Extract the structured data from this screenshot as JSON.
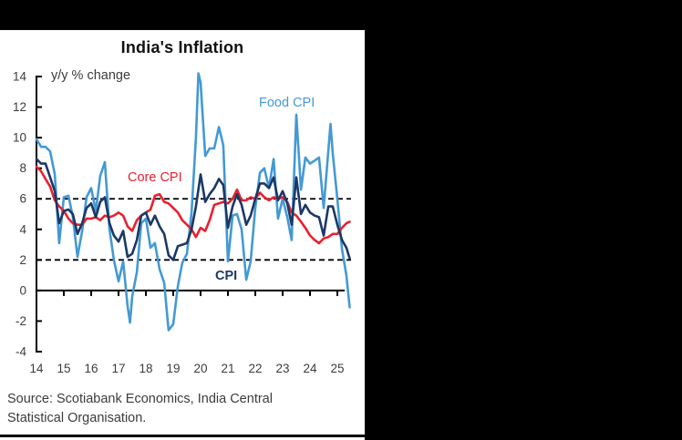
{
  "colors": {
    "background": "#000000",
    "panel": "#ffffff",
    "axis": "#000000",
    "text_muted": "#3c3c3c",
    "title": "#111111"
  },
  "source": {
    "line1": "Source: Scotiabank Economics, India Central",
    "line2": "Statistical Organisation."
  },
  "chart_data": {
    "type": "line",
    "title": "India's Inflation",
    "y_axis_note": "y/y % change",
    "xlabel": "",
    "ylabel": "",
    "xlim": [
      2014,
      2025.5
    ],
    "ylim": [
      -4,
      14
    ],
    "grid": false,
    "legend_position": "inline-labels",
    "reference_lines_dashed": [
      2,
      6
    ],
    "x_ticks": [
      {
        "t": 2014,
        "label": "14"
      },
      {
        "t": 2015,
        "label": "15"
      },
      {
        "t": 2016,
        "label": "16"
      },
      {
        "t": 2017,
        "label": "17"
      },
      {
        "t": 2018,
        "label": "18"
      },
      {
        "t": 2019,
        "label": "19"
      },
      {
        "t": 2020,
        "label": "20"
      },
      {
        "t": 2021,
        "label": "21"
      },
      {
        "t": 2022,
        "label": "22"
      },
      {
        "t": 2023,
        "label": "23"
      },
      {
        "t": 2024,
        "label": "24"
      },
      {
        "t": 2025,
        "label": "25"
      }
    ],
    "y_ticks": [
      {
        "v": 14,
        "label": "14"
      },
      {
        "v": 12,
        "label": "12"
      },
      {
        "v": 10,
        "label": "10"
      },
      {
        "v": 8,
        "label": "8"
      },
      {
        "v": 6,
        "label": "6"
      },
      {
        "v": 4,
        "label": "4"
      },
      {
        "v": 2,
        "label": "2"
      },
      {
        "v": 0,
        "label": "0"
      },
      {
        "v": -2,
        "label": "-2"
      },
      {
        "v": -4,
        "label": "-4"
      }
    ],
    "series": [
      {
        "name": "Food CPI",
        "color": "#4499d3",
        "points": [
          [
            2014.0,
            9.9
          ],
          [
            2014.17,
            9.4
          ],
          [
            2014.33,
            9.4
          ],
          [
            2014.5,
            9.1
          ],
          [
            2014.67,
            7.6
          ],
          [
            2014.83,
            3.1
          ],
          [
            2015.0,
            6.1
          ],
          [
            2015.17,
            6.2
          ],
          [
            2015.33,
            4.8
          ],
          [
            2015.5,
            2.2
          ],
          [
            2015.67,
            3.9
          ],
          [
            2015.83,
            6.1
          ],
          [
            2016.0,
            6.7
          ],
          [
            2016.17,
            5.2
          ],
          [
            2016.33,
            7.5
          ],
          [
            2016.5,
            8.4
          ],
          [
            2016.67,
            4.0
          ],
          [
            2016.83,
            2.0
          ],
          [
            2017.0,
            0.6
          ],
          [
            2017.17,
            1.9
          ],
          [
            2017.33,
            -1.0
          ],
          [
            2017.42,
            -2.1
          ],
          [
            2017.5,
            -0.4
          ],
          [
            2017.67,
            1.2
          ],
          [
            2017.83,
            4.4
          ],
          [
            2018.0,
            4.7
          ],
          [
            2018.17,
            2.8
          ],
          [
            2018.33,
            3.1
          ],
          [
            2018.5,
            1.4
          ],
          [
            2018.67,
            0.5
          ],
          [
            2018.83,
            -2.6
          ],
          [
            2019.0,
            -2.2
          ],
          [
            2019.17,
            0.3
          ],
          [
            2019.33,
            1.8
          ],
          [
            2019.5,
            2.4
          ],
          [
            2019.67,
            5.1
          ],
          [
            2019.83,
            10.0
          ],
          [
            2019.92,
            14.2
          ],
          [
            2020.0,
            13.6
          ],
          [
            2020.17,
            8.8
          ],
          [
            2020.33,
            9.3
          ],
          [
            2020.5,
            9.3
          ],
          [
            2020.67,
            10.7
          ],
          [
            2020.83,
            9.5
          ],
          [
            2021.0,
            1.9
          ],
          [
            2021.17,
            4.9
          ],
          [
            2021.33,
            5.0
          ],
          [
            2021.5,
            4.0
          ],
          [
            2021.67,
            0.7
          ],
          [
            2021.83,
            1.9
          ],
          [
            2022.0,
            5.4
          ],
          [
            2022.17,
            7.7
          ],
          [
            2022.33,
            8.0
          ],
          [
            2022.5,
            6.7
          ],
          [
            2022.67,
            8.6
          ],
          [
            2022.83,
            4.7
          ],
          [
            2023.0,
            6.0
          ],
          [
            2023.17,
            4.8
          ],
          [
            2023.33,
            3.3
          ],
          [
            2023.5,
            11.5
          ],
          [
            2023.67,
            6.6
          ],
          [
            2023.83,
            8.7
          ],
          [
            2024.0,
            8.3
          ],
          [
            2024.17,
            8.5
          ],
          [
            2024.33,
            8.7
          ],
          [
            2024.5,
            5.4
          ],
          [
            2024.75,
            10.9
          ],
          [
            2024.83,
            9.0
          ],
          [
            2025.0,
            6.0
          ],
          [
            2025.17,
            2.7
          ],
          [
            2025.33,
            1.0
          ],
          [
            2025.45,
            -1.1
          ]
        ]
      },
      {
        "name": "Core CPI",
        "color": "#e8212e",
        "points": [
          [
            2014.0,
            8.1
          ],
          [
            2014.17,
            7.8
          ],
          [
            2014.33,
            7.3
          ],
          [
            2014.5,
            6.8
          ],
          [
            2014.67,
            5.9
          ],
          [
            2014.83,
            5.5
          ],
          [
            2015.0,
            5.2
          ],
          [
            2015.17,
            4.7
          ],
          [
            2015.33,
            4.4
          ],
          [
            2015.5,
            4.3
          ],
          [
            2015.67,
            4.3
          ],
          [
            2015.83,
            4.7
          ],
          [
            2016.0,
            4.7
          ],
          [
            2016.17,
            4.8
          ],
          [
            2016.33,
            4.6
          ],
          [
            2016.5,
            4.9
          ],
          [
            2016.67,
            4.8
          ],
          [
            2016.83,
            4.9
          ],
          [
            2017.0,
            5.1
          ],
          [
            2017.17,
            4.9
          ],
          [
            2017.33,
            4.2
          ],
          [
            2017.5,
            3.9
          ],
          [
            2017.67,
            4.6
          ],
          [
            2017.83,
            4.9
          ],
          [
            2018.0,
            5.1
          ],
          [
            2018.17,
            5.3
          ],
          [
            2018.33,
            6.2
          ],
          [
            2018.5,
            6.3
          ],
          [
            2018.67,
            5.8
          ],
          [
            2018.83,
            5.7
          ],
          [
            2019.0,
            5.4
          ],
          [
            2019.17,
            5.1
          ],
          [
            2019.33,
            4.6
          ],
          [
            2019.5,
            4.3
          ],
          [
            2019.67,
            4.0
          ],
          [
            2019.83,
            3.5
          ],
          [
            2020.0,
            4.1
          ],
          [
            2020.17,
            3.9
          ],
          [
            2020.33,
            4.6
          ],
          [
            2020.5,
            5.6
          ],
          [
            2020.67,
            5.7
          ],
          [
            2020.83,
            5.8
          ],
          [
            2021.0,
            5.7
          ],
          [
            2021.17,
            6.0
          ],
          [
            2021.33,
            6.6
          ],
          [
            2021.5,
            5.9
          ],
          [
            2021.67,
            5.9
          ],
          [
            2021.83,
            6.1
          ],
          [
            2022.0,
            6.0
          ],
          [
            2022.17,
            6.4
          ],
          [
            2022.33,
            6.1
          ],
          [
            2022.5,
            5.9
          ],
          [
            2022.67,
            6.1
          ],
          [
            2022.83,
            6.0
          ],
          [
            2023.0,
            6.1
          ],
          [
            2023.17,
            5.8
          ],
          [
            2023.33,
            5.1
          ],
          [
            2023.5,
            4.9
          ],
          [
            2023.67,
            4.5
          ],
          [
            2023.83,
            4.1
          ],
          [
            2024.0,
            3.6
          ],
          [
            2024.17,
            3.3
          ],
          [
            2024.33,
            3.1
          ],
          [
            2024.5,
            3.4
          ],
          [
            2024.67,
            3.5
          ],
          [
            2024.83,
            3.7
          ],
          [
            2025.0,
            3.7
          ],
          [
            2025.17,
            4.1
          ],
          [
            2025.33,
            4.4
          ],
          [
            2025.45,
            4.5
          ]
        ]
      },
      {
        "name": "CPI",
        "color": "#1b3866",
        "points": [
          [
            2014.0,
            8.6
          ],
          [
            2014.17,
            8.3
          ],
          [
            2014.33,
            8.3
          ],
          [
            2014.5,
            7.4
          ],
          [
            2014.67,
            6.5
          ],
          [
            2014.83,
            4.4
          ],
          [
            2015.0,
            5.2
          ],
          [
            2015.17,
            5.3
          ],
          [
            2015.33,
            5.0
          ],
          [
            2015.5,
            3.7
          ],
          [
            2015.67,
            4.4
          ],
          [
            2015.83,
            5.4
          ],
          [
            2016.0,
            5.7
          ],
          [
            2016.17,
            4.8
          ],
          [
            2016.33,
            5.8
          ],
          [
            2016.5,
            6.1
          ],
          [
            2016.67,
            4.4
          ],
          [
            2016.83,
            3.6
          ],
          [
            2017.0,
            3.2
          ],
          [
            2017.17,
            3.9
          ],
          [
            2017.33,
            2.2
          ],
          [
            2017.5,
            2.4
          ],
          [
            2017.67,
            3.3
          ],
          [
            2017.83,
            4.9
          ],
          [
            2018.0,
            5.1
          ],
          [
            2018.17,
            4.3
          ],
          [
            2018.33,
            4.9
          ],
          [
            2018.5,
            4.2
          ],
          [
            2018.67,
            3.7
          ],
          [
            2018.83,
            2.3
          ],
          [
            2019.0,
            2.0
          ],
          [
            2019.17,
            2.9
          ],
          [
            2019.33,
            3.0
          ],
          [
            2019.5,
            3.1
          ],
          [
            2019.67,
            4.0
          ],
          [
            2019.83,
            5.5
          ],
          [
            2020.0,
            7.6
          ],
          [
            2020.17,
            5.8
          ],
          [
            2020.33,
            6.3
          ],
          [
            2020.5,
            6.7
          ],
          [
            2020.67,
            7.3
          ],
          [
            2020.83,
            6.9
          ],
          [
            2021.0,
            4.1
          ],
          [
            2021.17,
            5.5
          ],
          [
            2021.33,
            6.3
          ],
          [
            2021.5,
            5.6
          ],
          [
            2021.67,
            4.3
          ],
          [
            2021.83,
            4.9
          ],
          [
            2022.0,
            6.0
          ],
          [
            2022.17,
            7.0
          ],
          [
            2022.33,
            7.0
          ],
          [
            2022.5,
            6.7
          ],
          [
            2022.67,
            7.4
          ],
          [
            2022.83,
            5.9
          ],
          [
            2023.0,
            6.5
          ],
          [
            2023.17,
            5.7
          ],
          [
            2023.33,
            4.3
          ],
          [
            2023.5,
            7.4
          ],
          [
            2023.67,
            5.0
          ],
          [
            2023.83,
            5.6
          ],
          [
            2024.0,
            5.1
          ],
          [
            2024.17,
            4.9
          ],
          [
            2024.33,
            4.8
          ],
          [
            2024.5,
            3.6
          ],
          [
            2024.67,
            5.5
          ],
          [
            2024.83,
            5.5
          ],
          [
            2025.0,
            4.3
          ],
          [
            2025.17,
            3.3
          ],
          [
            2025.33,
            2.8
          ],
          [
            2025.45,
            2.1
          ]
        ]
      }
    ]
  }
}
